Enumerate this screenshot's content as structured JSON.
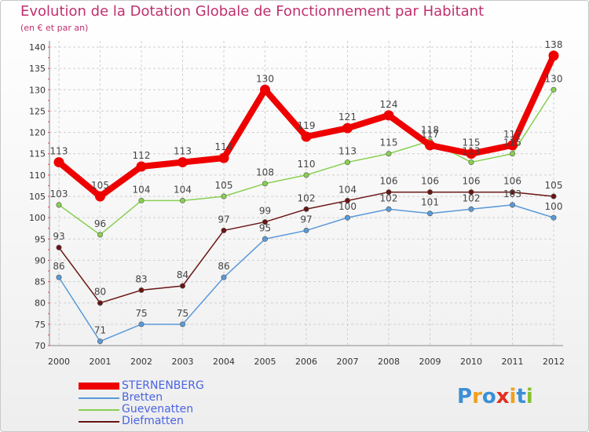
{
  "chart_data": {
    "type": "line",
    "title": "Evolution de la Dotation Globale de Fonctionnement par Habitant",
    "subtitle": "(en € et par an)",
    "categories": [
      "2000",
      "2001",
      "2002",
      "2003",
      "2004",
      "2005",
      "2006",
      "2007",
      "2008",
      "2009",
      "2010",
      "2011",
      "2012"
    ],
    "ylim": [
      70,
      140
    ],
    "yticks": [
      70,
      75,
      80,
      85,
      90,
      95,
      100,
      105,
      110,
      115,
      120,
      125,
      130,
      135,
      140
    ],
    "series": [
      {
        "name": "STERNENBERG",
        "color": "#ee0000",
        "values": [
          113,
          105,
          112,
          113,
          114,
          130,
          119,
          121,
          124,
          117,
          115,
          117,
          138
        ]
      },
      {
        "name": "Bretten",
        "color": "#5a9ad8",
        "values": [
          86,
          71,
          75,
          75,
          86,
          95,
          97,
          100,
          102,
          101,
          102,
          103,
          100
        ]
      },
      {
        "name": "Guevenatten",
        "color": "#88d050",
        "values": [
          103,
          96,
          104,
          104,
          105,
          108,
          110,
          113,
          115,
          118,
          113,
          115,
          130
        ]
      },
      {
        "name": "Diefmatten",
        "color": "#6a1414",
        "values": [
          93,
          80,
          83,
          84,
          97,
          99,
          102,
          104,
          106,
          106,
          106,
          106,
          105
        ]
      }
    ]
  },
  "logo": {
    "letters": [
      "P",
      "r",
      "o",
      "x",
      "i",
      "t",
      "i"
    ],
    "colors": [
      "#3b8fd6",
      "#f0a020",
      "#3b8fd6",
      "#e03020",
      "#f0a020",
      "#3b8fd6",
      "#88c030"
    ]
  }
}
